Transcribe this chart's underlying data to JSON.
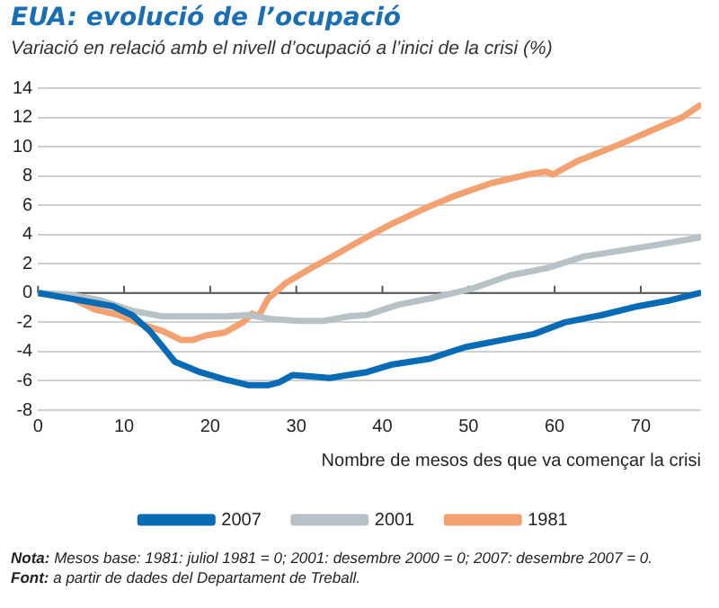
{
  "chart_data": {
    "type": "line",
    "title": "EUA: evolució de l’ocupació",
    "subtitle": "Variació en relació amb el nivell d’ocupació a l’inici de la crisi (%)",
    "xlabel": "Nombre de mesos des que va començar la crisi",
    "xlim": [
      0,
      77
    ],
    "xticks": [
      0,
      10,
      20,
      30,
      40,
      50,
      60,
      70
    ],
    "ylim": [
      -8,
      14
    ],
    "yticks": [
      -8,
      -6,
      -4,
      -2,
      0,
      2,
      4,
      6,
      8,
      10,
      12,
      14
    ],
    "grid": "y",
    "legend": "bottom",
    "marker": "none",
    "line_style": "solid",
    "series": [
      {
        "name": "2007",
        "color": "#0a6bb5",
        "x": [
          0,
          5,
          8.7,
          10.9,
          13,
          15.9,
          18.8,
          21.7,
          24.5,
          26.7,
          28,
          29.6,
          31.7,
          33.9,
          36,
          38.2,
          41,
          45.4,
          49.6,
          54,
          57.6,
          61.2,
          65.5,
          69.7,
          73.4,
          76.8
        ],
        "values": [
          0,
          -0.5,
          -0.9,
          -1.5,
          -2.6,
          -4.7,
          -5.4,
          -5.9,
          -6.3,
          -6.3,
          -6.1,
          -5.6,
          -5.7,
          -5.8,
          -5.6,
          -5.4,
          -4.9,
          -4.5,
          -3.7,
          -3.2,
          -2.8,
          -2,
          -1.5,
          -0.9,
          -0.5,
          0
        ]
      },
      {
        "name": "2001",
        "color": "#b8c2c6",
        "x": [
          0,
          3.7,
          7.3,
          10.9,
          14.5,
          18,
          21.7,
          24.5,
          27.4,
          30.3,
          33.2,
          36,
          38.2,
          41.8,
          46.1,
          50.4,
          54.8,
          59.1,
          63.4,
          67.7,
          72,
          76.8
        ],
        "values": [
          0,
          -0.1,
          -0.5,
          -1.2,
          -1.6,
          -1.6,
          -1.6,
          -1.5,
          -1.8,
          -1.9,
          -1.9,
          -1.6,
          -1.5,
          -0.8,
          -0.3,
          0.3,
          1.2,
          1.7,
          2.5,
          2.9,
          3.3,
          3.8
        ]
      },
      {
        "name": "1981",
        "color": "#f4a172",
        "x": [
          0,
          3.7,
          6.5,
          9.4,
          12.3,
          14.5,
          16.6,
          18,
          19.5,
          21.7,
          23.8,
          24.9,
          25.6,
          26.7,
          28.8,
          31.7,
          33.9,
          37.5,
          41,
          44.6,
          48.2,
          52.6,
          56.9,
          59,
          59.8,
          62.6,
          66.9,
          71.2,
          74.8,
          76.8
        ],
        "values": [
          0,
          -0.3,
          -1.1,
          -1.5,
          -2.2,
          -2.6,
          -3.2,
          -3.2,
          -2.9,
          -2.7,
          -2,
          -1.4,
          -1.6,
          -0.4,
          0.7,
          1.7,
          2.4,
          3.6,
          4.7,
          5.7,
          6.6,
          7.5,
          8.1,
          8.3,
          8.1,
          9,
          10,
          11.1,
          12,
          12.8
        ]
      }
    ],
    "annotations": [
      "Nota: Mesos base: 1981: juliol 1981 = 0; 2001: desembre 2000 = 0; 2007: desembre 2007 = 0.",
      "Font: a partir de dades del Departament de Treball."
    ]
  }
}
